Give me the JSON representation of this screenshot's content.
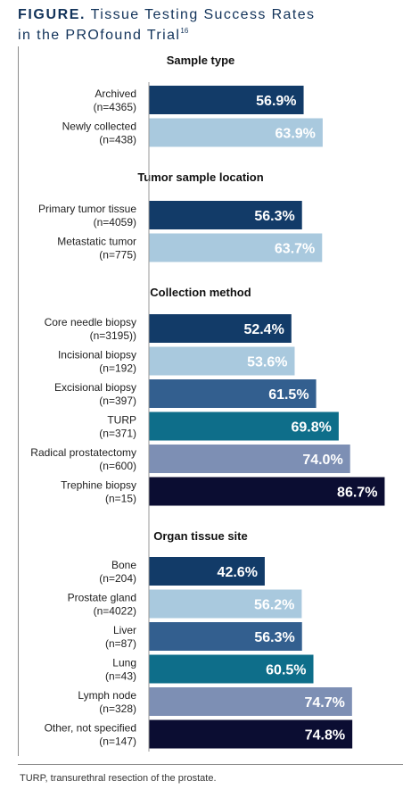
{
  "figure": {
    "label": "FIGURE.",
    "title_line1": "Tissue Testing Success Rates",
    "title_line2": "in the PROfound Trial",
    "title_ref": "16"
  },
  "footnote": "TURP, transurethral resection of the prostate.",
  "chart_data": {
    "type": "bar",
    "orientation": "horizontal",
    "value_format": "percent, 1 decimal",
    "xlim": [
      0,
      100
    ],
    "grid": false,
    "legend": "none",
    "groups": [
      {
        "title": "Sample type",
        "bars": [
          {
            "label": "Archived",
            "n": "(n=4365)",
            "value": 56.9,
            "value_label": "56.9%",
            "color": "#123b68"
          },
          {
            "label": "Newly collected",
            "n": "(n=438)",
            "value": 63.9,
            "value_label": "63.9%",
            "color": "#a9c9de"
          }
        ]
      },
      {
        "title": "Tumor sample location",
        "bars": [
          {
            "label": "Primary tumor tissue",
            "n": "(n=4059)",
            "value": 56.3,
            "value_label": "56.3%",
            "color": "#123b68"
          },
          {
            "label": "Metastatic tumor",
            "n": "(n=775)",
            "value": 63.7,
            "value_label": "63.7%",
            "color": "#a9c9de"
          }
        ]
      },
      {
        "title": "Collection method",
        "bars": [
          {
            "label": "Core needle biopsy",
            "n": "(n=3195))",
            "value": 52.4,
            "value_label": "52.4%",
            "color": "#123b68"
          },
          {
            "label": "Incisional biopsy",
            "n": "(n=192)",
            "value": 53.6,
            "value_label": "53.6%",
            "color": "#a9c9de"
          },
          {
            "label": "Excisional biopsy",
            "n": "(n=397)",
            "value": 61.5,
            "value_label": "61.5%",
            "color": "#335f8f"
          },
          {
            "label": "TURP",
            "n": "(n=371)",
            "value": 69.8,
            "value_label": "69.8%",
            "color": "#0e6e8a"
          },
          {
            "label": "Radical prostatectomy",
            "n": "(n=600)",
            "value": 74.0,
            "value_label": "74.0%",
            "color": "#7d8fb4"
          },
          {
            "label": "Trephine biopsy",
            "n": "(n=15)",
            "value": 86.7,
            "value_label": "86.7%",
            "color": "#0b0d32"
          }
        ]
      },
      {
        "title": "Organ tissue site",
        "bars": [
          {
            "label": "Bone",
            "n": "(n=204)",
            "value": 42.6,
            "value_label": "42.6%",
            "color": "#123b68"
          },
          {
            "label": "Prostate gland",
            "n": "(n=4022)",
            "value": 56.2,
            "value_label": "56.2%",
            "color": "#a9c9de"
          },
          {
            "label": "Liver",
            "n": "(n=87)",
            "value": 56.3,
            "value_label": "56.3%",
            "color": "#335f8f"
          },
          {
            "label": "Lung",
            "n": "(n=43)",
            "value": 60.5,
            "value_label": "60.5%",
            "color": "#0e6e8a"
          },
          {
            "label": "Lymph node",
            "n": "(n=328)",
            "value": 74.7,
            "value_label": "74.7%",
            "color": "#7d8fb4"
          },
          {
            "label": "Other, not specified",
            "n": "(n=147)",
            "value": 74.8,
            "value_label": "74.8%",
            "color": "#0b0d32"
          }
        ]
      }
    ]
  }
}
